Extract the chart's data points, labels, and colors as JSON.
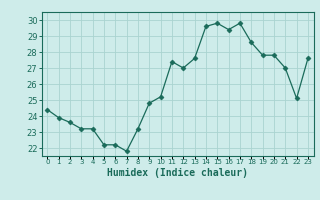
{
  "x": [
    0,
    1,
    2,
    3,
    4,
    5,
    6,
    7,
    8,
    9,
    10,
    11,
    12,
    13,
    14,
    15,
    16,
    17,
    18,
    19,
    20,
    21,
    22,
    23
  ],
  "y": [
    24.4,
    23.9,
    23.6,
    23.2,
    23.2,
    22.2,
    22.2,
    21.8,
    23.2,
    24.8,
    25.2,
    27.4,
    27.0,
    27.6,
    29.6,
    29.8,
    29.4,
    29.8,
    28.6,
    27.8,
    27.8,
    27.0,
    25.1,
    27.6
  ],
  "line_color": "#1a6b5a",
  "marker": "D",
  "marker_size": 2.5,
  "bg_color": "#ceecea",
  "grid_color": "#aad4d0",
  "xlabel": "Humidex (Indice chaleur)",
  "ylabel_ticks": [
    22,
    23,
    24,
    25,
    26,
    27,
    28,
    29,
    30
  ],
  "xlim": [
    -0.5,
    23.5
  ],
  "ylim": [
    21.5,
    30.5
  ],
  "tick_color": "#1a6b5a",
  "spine_color": "#1a6b5a"
}
